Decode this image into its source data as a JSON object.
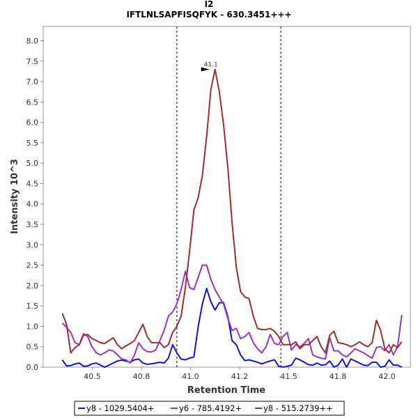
{
  "chart_data": {
    "type": "line",
    "title": "I2",
    "subtitle": "IFTLNLSAPFISQFYK - 630.3451+++",
    "xlabel": "Retention Time",
    "ylabel": "Intensity 10^3",
    "xlim": [
      40.27,
      42.0
    ],
    "ylim": [
      0,
      8.35
    ],
    "x_ticks": [
      "40.5",
      "40.8",
      "41.0",
      "41.2",
      "41.5",
      "41.8",
      "42.0"
    ],
    "y_ticks": [
      "0.0",
      "0.5",
      "1.0",
      "1.5",
      "2.0",
      "2.5",
      "3.0",
      "3.5",
      "4.0",
      "4.5",
      "5.0",
      "5.5",
      "6.0",
      "6.5",
      "7.0",
      "7.5",
      "8.0"
    ],
    "integration_bounds": [
      40.9,
      41.39
    ],
    "peak_annotation": {
      "label": "41.1",
      "x": 41.06,
      "y": 7.3,
      "color": "#8b1a1a"
    },
    "grid": false,
    "legend_position": "bottom",
    "series": [
      {
        "name": "y8 - 1029.5404+",
        "color": "#1010e0",
        "x": [
          40.36,
          40.38,
          40.4,
          40.42,
          40.44,
          40.46,
          40.48,
          40.5,
          40.52,
          40.54,
          40.56,
          40.58,
          40.6,
          40.62,
          40.64,
          40.66,
          40.68,
          40.7,
          40.72,
          40.74,
          40.76,
          40.78,
          40.8,
          40.82,
          40.84,
          40.86,
          40.88,
          40.9,
          40.92,
          40.94,
          40.96,
          40.98,
          41.0,
          41.02,
          41.04,
          41.06,
          41.08,
          41.1,
          41.12,
          41.14,
          41.16,
          41.18,
          41.2,
          41.22,
          41.24,
          41.26,
          41.28,
          41.3,
          41.32,
          41.34,
          41.36,
          41.38,
          41.4,
          41.42,
          41.44,
          41.46,
          41.48,
          41.5,
          41.52,
          41.54,
          41.56,
          41.58,
          41.6,
          41.62,
          41.64,
          41.66,
          41.68,
          41.7,
          41.72,
          41.74,
          41.76,
          41.78,
          41.8,
          41.82,
          41.84,
          41.86,
          41.88,
          41.9,
          41.92,
          41.94,
          41.96
        ],
        "values": [
          0.18,
          0.03,
          0.04,
          0.08,
          0.1,
          0.02,
          0.03,
          0.08,
          0.1,
          0.05,
          0.0,
          0.05,
          0.1,
          0.15,
          0.17,
          0.15,
          0.12,
          0.18,
          0.2,
          0.1,
          0.07,
          0.08,
          0.1,
          0.12,
          0.1,
          0.22,
          0.55,
          0.35,
          0.2,
          0.18,
          0.22,
          0.25,
          0.98,
          1.55,
          1.93,
          1.6,
          1.4,
          1.58,
          1.58,
          1.25,
          0.65,
          0.55,
          0.3,
          0.16,
          0.18,
          0.15,
          0.12,
          0.08,
          0.12,
          0.15,
          0.18,
          0.02,
          0.0,
          0.02,
          0.05,
          0.22,
          0.18,
          0.12,
          0.06,
          0.05,
          0.1,
          0.05,
          0.06,
          0.15,
          0.0,
          0.05,
          0.2,
          0.0,
          0.2,
          0.15,
          0.1,
          0.05,
          0.04,
          0.12,
          0.12,
          0.0,
          0.02,
          0.18,
          0.05,
          0.05,
          0.0
        ]
      },
      {
        "name": "y6 - 785.4192+",
        "color": "#9932cc",
        "x": [
          40.36,
          40.38,
          40.4,
          40.42,
          40.44,
          40.46,
          40.48,
          40.5,
          40.52,
          40.54,
          40.56,
          40.58,
          40.6,
          40.62,
          40.64,
          40.66,
          40.68,
          40.7,
          40.72,
          40.74,
          40.76,
          40.78,
          40.8,
          40.82,
          40.84,
          40.86,
          40.88,
          40.9,
          40.92,
          40.94,
          40.96,
          40.98,
          41.0,
          41.02,
          41.04,
          41.06,
          41.08,
          41.1,
          41.12,
          41.14,
          41.16,
          41.18,
          41.2,
          41.22,
          41.24,
          41.26,
          41.28,
          41.3,
          41.32,
          41.34,
          41.36,
          41.38,
          41.4,
          41.42,
          41.44,
          41.46,
          41.48,
          41.5,
          41.52,
          41.54,
          41.56,
          41.58,
          41.6,
          41.62,
          41.64,
          41.66,
          41.68,
          41.7,
          41.72,
          41.74,
          41.76,
          41.78,
          41.8,
          41.82,
          41.84,
          41.86,
          41.88,
          41.9,
          41.92,
          41.94,
          41.96
        ],
        "values": [
          1.08,
          0.98,
          0.85,
          0.6,
          0.55,
          0.82,
          0.75,
          0.5,
          0.35,
          0.3,
          0.35,
          0.42,
          0.4,
          0.3,
          0.2,
          0.18,
          0.1,
          0.3,
          0.6,
          0.45,
          0.38,
          0.37,
          0.42,
          0.65,
          0.9,
          1.25,
          1.35,
          1.55,
          1.9,
          2.35,
          1.95,
          1.9,
          2.2,
          2.5,
          2.5,
          2.15,
          1.9,
          1.72,
          1.55,
          1.2,
          0.9,
          0.95,
          0.7,
          0.75,
          0.85,
          0.6,
          0.45,
          0.35,
          0.5,
          0.8,
          0.58,
          0.55,
          0.75,
          0.85,
          0.42,
          0.55,
          0.5,
          0.58,
          0.7,
          0.3,
          0.25,
          0.22,
          0.2,
          0.72,
          0.4,
          0.4,
          0.3,
          0.25,
          0.35,
          0.45,
          0.4,
          0.35,
          0.28,
          0.22,
          0.48,
          0.5,
          0.4,
          0.55,
          0.3,
          0.5,
          1.28
        ]
      },
      {
        "name": "y8 - 515.2739++",
        "color": "#a52a2a",
        "x": [
          40.36,
          40.38,
          40.4,
          40.42,
          40.44,
          40.46,
          40.48,
          40.5,
          40.52,
          40.54,
          40.56,
          40.58,
          40.6,
          40.62,
          40.64,
          40.66,
          40.68,
          40.7,
          40.72,
          40.74,
          40.76,
          40.78,
          40.8,
          40.82,
          40.84,
          40.86,
          40.88,
          40.9,
          40.92,
          40.94,
          40.96,
          40.98,
          41.0,
          41.02,
          41.04,
          41.06,
          41.08,
          41.1,
          41.12,
          41.14,
          41.16,
          41.18,
          41.2,
          41.22,
          41.24,
          41.26,
          41.28,
          41.3,
          41.32,
          41.34,
          41.36,
          41.38,
          41.4,
          41.42,
          41.44,
          41.46,
          41.48,
          41.5,
          41.52,
          41.54,
          41.56,
          41.58,
          41.6,
          41.62,
          41.64,
          41.66,
          41.68,
          41.7,
          41.72,
          41.74,
          41.76,
          41.78,
          41.8,
          41.82,
          41.84,
          41.86,
          41.88,
          41.9,
          41.92,
          41.94,
          41.96
        ],
        "values": [
          1.32,
          1.05,
          0.35,
          0.48,
          0.55,
          0.78,
          0.8,
          0.7,
          0.65,
          0.6,
          0.58,
          0.65,
          0.72,
          0.55,
          0.45,
          0.52,
          0.58,
          0.65,
          0.85,
          1.05,
          0.75,
          0.6,
          0.6,
          0.6,
          0.48,
          0.55,
          0.85,
          1.0,
          1.25,
          1.95,
          2.85,
          3.85,
          4.15,
          4.7,
          5.65,
          6.8,
          7.3,
          6.75,
          5.95,
          4.9,
          3.55,
          2.45,
          1.85,
          1.72,
          1.68,
          1.25,
          0.95,
          0.92,
          0.92,
          0.95,
          0.88,
          0.75,
          0.55,
          0.55,
          0.55,
          0.62,
          0.45,
          0.55,
          0.55,
          0.65,
          0.75,
          0.5,
          0.35,
          0.78,
          0.88,
          0.6,
          0.58,
          0.55,
          0.5,
          0.55,
          0.62,
          0.55,
          0.5,
          0.6,
          1.15,
          0.9,
          0.45,
          0.35,
          0.55,
          0.48,
          0.62
        ]
      }
    ]
  }
}
